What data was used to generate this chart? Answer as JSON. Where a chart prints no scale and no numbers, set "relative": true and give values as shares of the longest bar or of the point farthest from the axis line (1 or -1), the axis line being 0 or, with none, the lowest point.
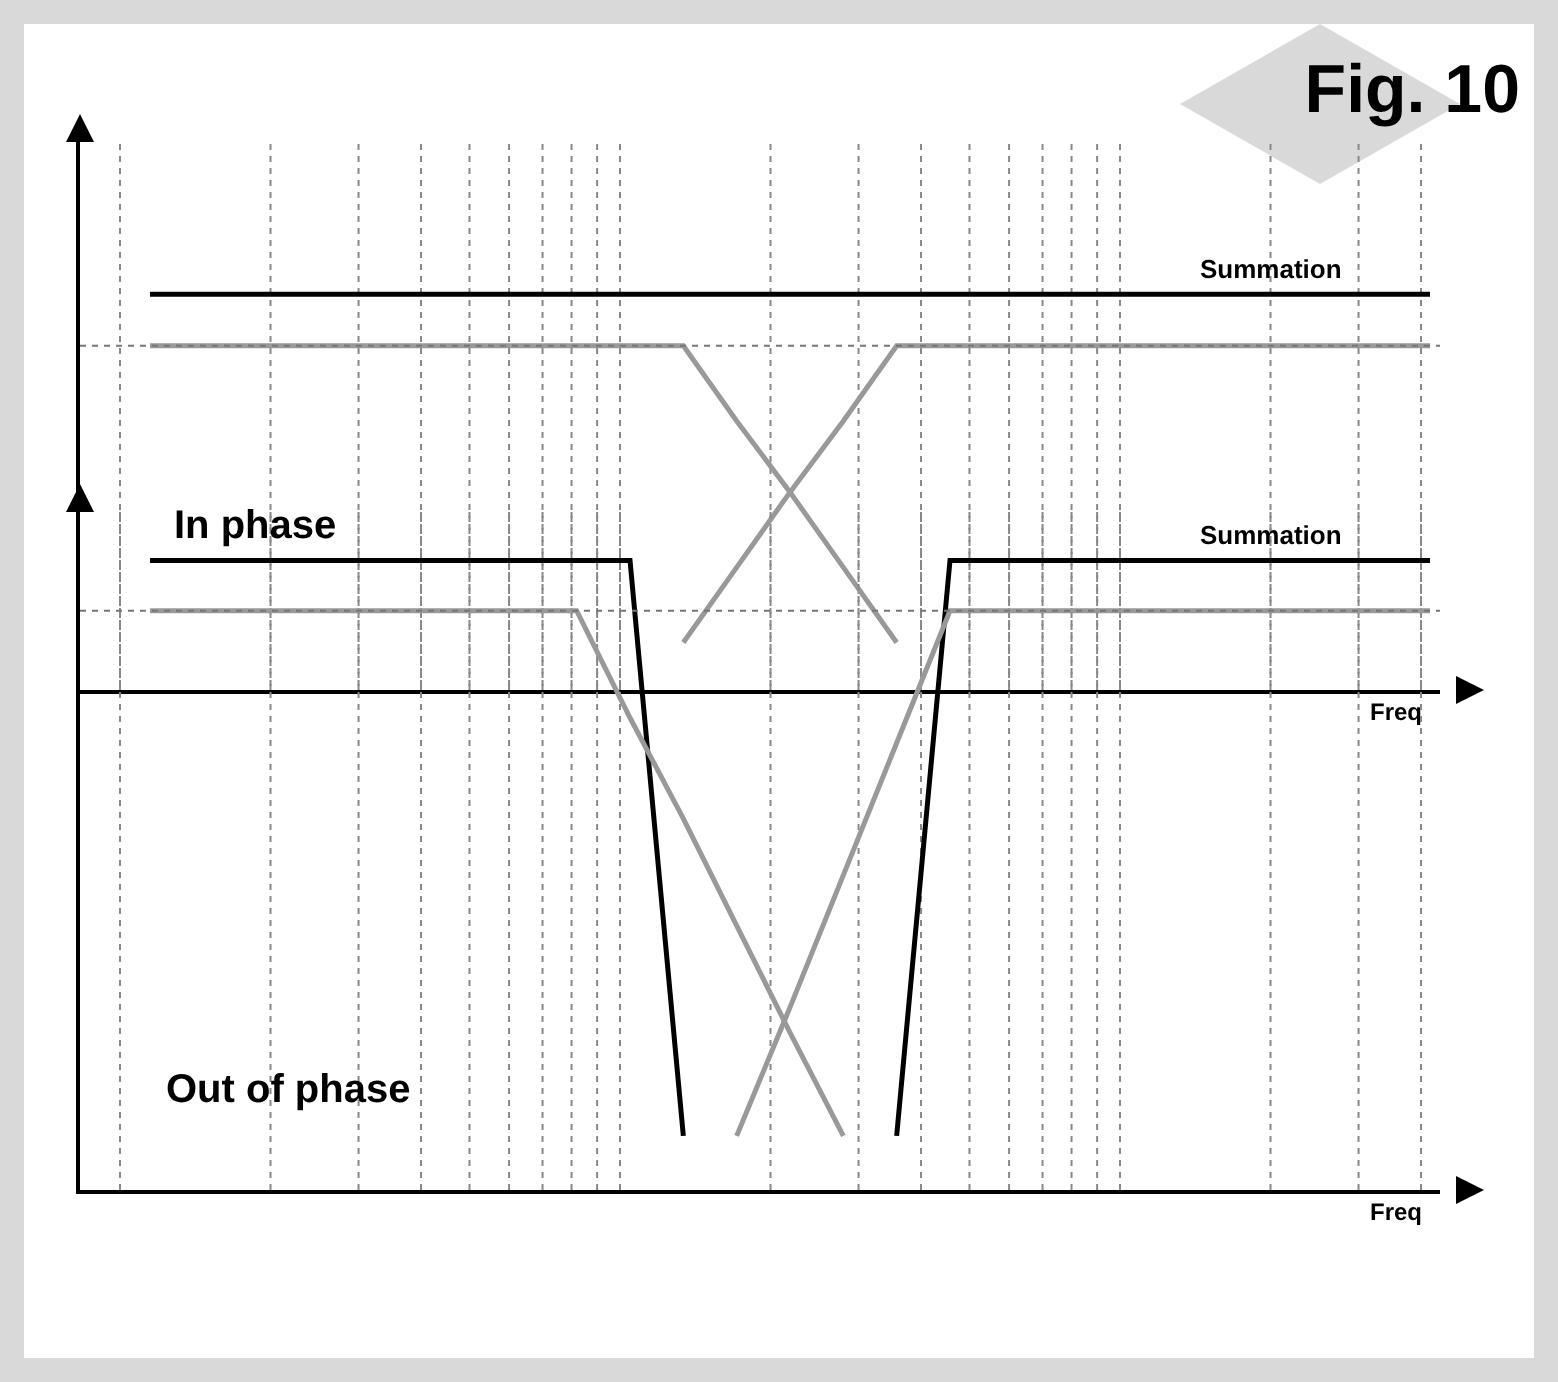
{
  "chart_data": [
    {
      "type": "line",
      "title": "Fig. 10",
      "xlabel": "Freq",
      "annotations": [
        "In phase"
      ],
      "relative": true,
      "grid": "x",
      "categories": [
        null,
        null,
        null,
        null,
        null,
        null,
        null,
        null,
        null,
        null,
        null,
        null,
        null,
        null,
        null,
        null,
        null,
        null,
        null,
        null,
        null,
        null,
        null,
        null,
        null
      ],
      "ref_lines": [
        {
          "axis": "y",
          "value": 0.87,
          "color": "#777777",
          "line_style": "dotted"
        }
      ],
      "series": [
        {
          "name": "Summation",
          "color": "#000000",
          "values": [
            1,
            1,
            1,
            1,
            1,
            1,
            1,
            1,
            1,
            1,
            1,
            1,
            1,
            1,
            1,
            1,
            1,
            1,
            1,
            1,
            1,
            1,
            1,
            1,
            1
          ]
        },
        {
          "color": "#999999",
          "values": [
            0.87,
            0.87,
            0.87,
            0.87,
            0.87,
            0.87,
            0.87,
            0.87,
            0.87,
            0.87,
            0.87,
            0.68,
            0.5,
            0.31,
            0.12,
            null,
            null,
            null,
            null,
            null,
            null,
            null,
            null,
            null,
            null
          ]
        },
        {
          "color": "#999999",
          "values": [
            null,
            null,
            null,
            null,
            null,
            null,
            null,
            null,
            null,
            null,
            0.12,
            0.31,
            0.5,
            0.68,
            0.87,
            0.87,
            0.87,
            0.87,
            0.87,
            0.87,
            0.87,
            0.87,
            0.87,
            0.87,
            0.87
          ]
        }
      ]
    },
    {
      "type": "line",
      "xlabel": "Freq",
      "annotations": [
        "Out of phase"
      ],
      "relative": true,
      "grid": "x",
      "categories": [
        null,
        null,
        null,
        null,
        null,
        null,
        null,
        null,
        null,
        null,
        null,
        null,
        null,
        null,
        null,
        null,
        null,
        null,
        null,
        null,
        null,
        null,
        null,
        null,
        null
      ],
      "ref_lines": [
        {
          "axis": "y",
          "value": 0.92,
          "color": "#777777",
          "line_style": "dotted"
        }
      ],
      "series": [
        {
          "name": "Summation",
          "color": "#000000",
          "values": [
            1,
            1,
            1,
            1,
            1,
            1,
            1,
            1,
            1,
            1,
            0.086,
            null,
            null,
            null,
            0.086,
            1,
            1,
            1,
            1,
            1,
            1,
            1,
            1,
            1,
            1
          ]
        },
        {
          "color": "#999999",
          "values": [
            0.92,
            0.92,
            0.92,
            0.92,
            0.92,
            0.92,
            0.92,
            0.92,
            0.92,
            0.75,
            0.59,
            0.42,
            0.25,
            0.086,
            null,
            null,
            null,
            null,
            null,
            null,
            null,
            null,
            null,
            null,
            null
          ]
        },
        {
          "color": "#999999",
          "values": [
            null,
            null,
            null,
            null,
            null,
            null,
            null,
            null,
            null,
            null,
            null,
            0.086,
            0.29,
            0.5,
            0.71,
            0.92,
            0.92,
            0.92,
            0.92,
            0.92,
            0.92,
            0.92,
            0.92,
            0.92,
            0.92
          ]
        }
      ]
    }
  ]
}
